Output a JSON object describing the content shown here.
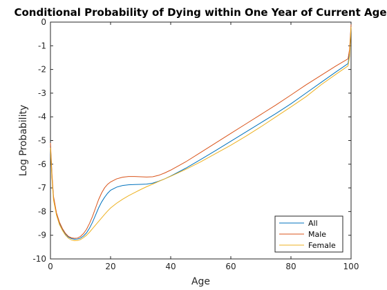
{
  "chart_data": {
    "type": "line",
    "title": "Conditional Probability of Dying within One Year of Current Age",
    "xlabel": "Age",
    "ylabel": "Log Probability",
    "xlim": [
      0,
      100
    ],
    "ylim": [
      -10,
      0
    ],
    "xticks": [
      0,
      20,
      40,
      60,
      80,
      100
    ],
    "yticks": [
      -10,
      -9,
      -8,
      -7,
      -6,
      -5,
      -4,
      -3,
      -2,
      -1,
      0
    ],
    "grid": false,
    "legend_position": "bottom-right",
    "series": [
      {
        "name": "All",
        "color": "#0072BD",
        "points": [
          [
            0,
            -5.2
          ],
          [
            0.5,
            -6.5
          ],
          [
            1,
            -7.4
          ],
          [
            2,
            -8.1
          ],
          [
            3,
            -8.5
          ],
          [
            4,
            -8.75
          ],
          [
            5,
            -8.95
          ],
          [
            6,
            -9.08
          ],
          [
            7,
            -9.14
          ],
          [
            8,
            -9.17
          ],
          [
            9,
            -9.16
          ],
          [
            10,
            -9.12
          ],
          [
            11,
            -9.03
          ],
          [
            12,
            -8.9
          ],
          [
            13,
            -8.7
          ],
          [
            14,
            -8.45
          ],
          [
            15,
            -8.15
          ],
          [
            16,
            -7.85
          ],
          [
            17,
            -7.6
          ],
          [
            18,
            -7.4
          ],
          [
            19,
            -7.23
          ],
          [
            20,
            -7.1
          ],
          [
            22,
            -6.97
          ],
          [
            24,
            -6.9
          ],
          [
            26,
            -6.87
          ],
          [
            28,
            -6.86
          ],
          [
            30,
            -6.85
          ],
          [
            32,
            -6.84
          ],
          [
            34,
            -6.8
          ],
          [
            36,
            -6.72
          ],
          [
            38,
            -6.62
          ],
          [
            40,
            -6.5
          ],
          [
            45,
            -6.17
          ],
          [
            50,
            -5.8
          ],
          [
            55,
            -5.42
          ],
          [
            60,
            -5.03
          ],
          [
            65,
            -4.64
          ],
          [
            70,
            -4.25
          ],
          [
            75,
            -3.86
          ],
          [
            80,
            -3.45
          ],
          [
            85,
            -3.0
          ],
          [
            90,
            -2.55
          ],
          [
            95,
            -2.1
          ],
          [
            99,
            -1.75
          ],
          [
            99.5,
            -1.3
          ],
          [
            100,
            -0.15
          ]
        ]
      },
      {
        "name": "Male",
        "color": "#D95319",
        "points": [
          [
            0,
            -5.1
          ],
          [
            0.5,
            -6.4
          ],
          [
            1,
            -7.35
          ],
          [
            2,
            -8.05
          ],
          [
            3,
            -8.45
          ],
          [
            4,
            -8.72
          ],
          [
            5,
            -8.92
          ],
          [
            6,
            -9.05
          ],
          [
            7,
            -9.11
          ],
          [
            8,
            -9.13
          ],
          [
            9,
            -9.12
          ],
          [
            10,
            -9.05
          ],
          [
            11,
            -8.93
          ],
          [
            12,
            -8.75
          ],
          [
            13,
            -8.5
          ],
          [
            14,
            -8.2
          ],
          [
            15,
            -7.85
          ],
          [
            16,
            -7.5
          ],
          [
            17,
            -7.22
          ],
          [
            18,
            -7.0
          ],
          [
            19,
            -6.85
          ],
          [
            20,
            -6.75
          ],
          [
            22,
            -6.62
          ],
          [
            24,
            -6.55
          ],
          [
            26,
            -6.52
          ],
          [
            28,
            -6.52
          ],
          [
            30,
            -6.53
          ],
          [
            32,
            -6.54
          ],
          [
            34,
            -6.53
          ],
          [
            36,
            -6.47
          ],
          [
            38,
            -6.37
          ],
          [
            40,
            -6.25
          ],
          [
            45,
            -5.9
          ],
          [
            50,
            -5.5
          ],
          [
            55,
            -5.1
          ],
          [
            60,
            -4.7
          ],
          [
            65,
            -4.3
          ],
          [
            70,
            -3.9
          ],
          [
            75,
            -3.5
          ],
          [
            80,
            -3.08
          ],
          [
            85,
            -2.65
          ],
          [
            90,
            -2.25
          ],
          [
            95,
            -1.85
          ],
          [
            99,
            -1.55
          ],
          [
            99.5,
            -1.15
          ],
          [
            100,
            -0.1
          ]
        ]
      },
      {
        "name": "Female",
        "color": "#EDB120",
        "points": [
          [
            0,
            -5.3
          ],
          [
            0.5,
            -6.6
          ],
          [
            1,
            -7.5
          ],
          [
            2,
            -8.15
          ],
          [
            3,
            -8.55
          ],
          [
            4,
            -8.8
          ],
          [
            5,
            -9.0
          ],
          [
            6,
            -9.13
          ],
          [
            7,
            -9.2
          ],
          [
            8,
            -9.23
          ],
          [
            9,
            -9.22
          ],
          [
            10,
            -9.18
          ],
          [
            11,
            -9.1
          ],
          [
            12,
            -9.0
          ],
          [
            13,
            -8.87
          ],
          [
            14,
            -8.72
          ],
          [
            15,
            -8.57
          ],
          [
            16,
            -8.42
          ],
          [
            17,
            -8.27
          ],
          [
            18,
            -8.12
          ],
          [
            19,
            -7.98
          ],
          [
            20,
            -7.85
          ],
          [
            22,
            -7.65
          ],
          [
            24,
            -7.48
          ],
          [
            26,
            -7.33
          ],
          [
            28,
            -7.2
          ],
          [
            30,
            -7.07
          ],
          [
            32,
            -6.95
          ],
          [
            34,
            -6.84
          ],
          [
            36,
            -6.73
          ],
          [
            38,
            -6.62
          ],
          [
            40,
            -6.51
          ],
          [
            45,
            -6.22
          ],
          [
            50,
            -5.9
          ],
          [
            55,
            -5.55
          ],
          [
            60,
            -5.2
          ],
          [
            65,
            -4.82
          ],
          [
            70,
            -4.42
          ],
          [
            75,
            -4.0
          ],
          [
            80,
            -3.58
          ],
          [
            85,
            -3.15
          ],
          [
            90,
            -2.65
          ],
          [
            95,
            -2.2
          ],
          [
            99,
            -1.85
          ],
          [
            99.5,
            -1.45
          ],
          [
            100,
            -0.2
          ]
        ]
      }
    ]
  }
}
